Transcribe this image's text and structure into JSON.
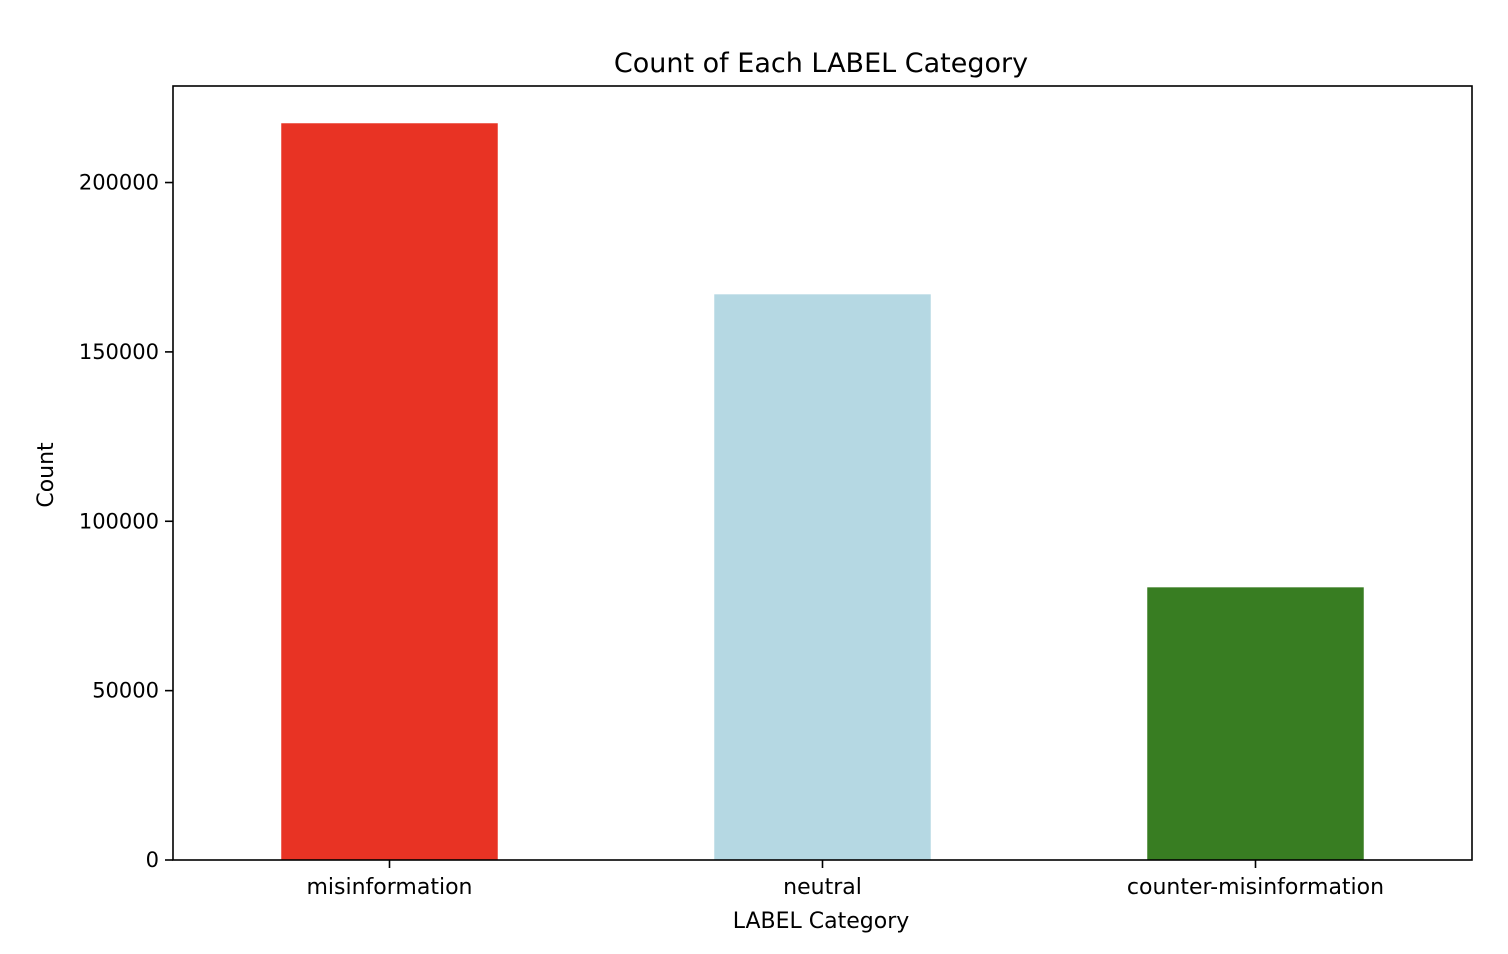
{
  "chart_data": {
    "type": "bar",
    "title": "Count of Each LABEL Category",
    "xlabel": "LABEL Category",
    "ylabel": "Count",
    "categories": [
      "misinformation",
      "neutral",
      "counter-misinformation"
    ],
    "values": [
      217500,
      167000,
      80500
    ],
    "colors": [
      "#e83324",
      "#b5d8e3",
      "#387d22"
    ],
    "ylim": [
      0,
      228500
    ],
    "yticks": [
      0,
      50000,
      100000,
      150000,
      200000
    ],
    "ytick_labels": [
      "0",
      "50000",
      "100000",
      "150000",
      "200000"
    ],
    "grid": false,
    "legend": "none"
  }
}
